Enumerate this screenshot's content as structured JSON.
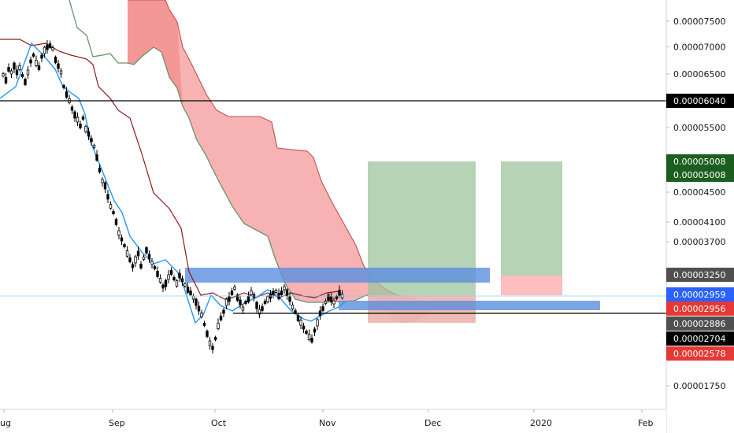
{
  "chart_data": {
    "type": "candlestick",
    "x_ticks": [
      "ug",
      "Sep",
      "Oct",
      "Nov",
      "Dec",
      "2020",
      "Feb"
    ],
    "price_ticks": [
      "0.00007500",
      "0.00007000",
      "0.00006500",
      "0.00005500",
      "0.00004500",
      "0.00004100",
      "0.00003700",
      "0.00001750"
    ],
    "horizontal_lines": [
      {
        "value": 6.04e-05,
        "color": "#000000"
      },
      {
        "value": 2.886e-05,
        "color": "#000000"
      }
    ],
    "price_tags": [
      {
        "text": "0.00006040",
        "bg": "#000000"
      },
      {
        "text": "0.00005008",
        "bg": "#1b5e20"
      },
      {
        "text": "0.00005008",
        "bg": "#1b5e20"
      },
      {
        "text": "0.00003250",
        "bg": "#505050"
      },
      {
        "text": "0.00002959",
        "bg": "#2962ff"
      },
      {
        "text": "0.00002956",
        "bg": "#e53935"
      },
      {
        "text": "0.00002886",
        "bg": "#505050"
      },
      {
        "text": "0.00002704",
        "bg": "#000000"
      },
      {
        "text": "0.00002578",
        "bg": "#e53935"
      }
    ],
    "ylim": [
      1.4e-05,
      8e-05
    ],
    "colors": {
      "kumo_bear": "#f28b8b",
      "kumo_bull": "#9ccf9c",
      "span_a": "#6b8f6b",
      "span_b": "#c0504d",
      "tenkan": "#2196f3",
      "kijun": "#8b1a1a",
      "zone_blue": "#5b8fe0",
      "target_green": "#9ec49e",
      "stop_red": "#ffb3b3",
      "candle": "#000000"
    }
  }
}
